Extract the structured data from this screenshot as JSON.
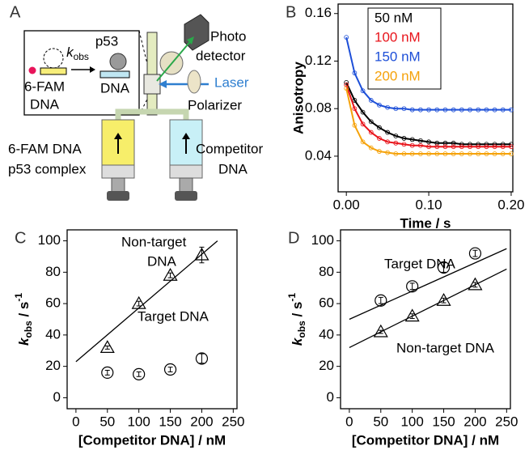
{
  "panel_a": {
    "label": "A",
    "inset": {
      "kobs": {
        "symbol": "k",
        "subscript": "obs"
      },
      "p53": "p53",
      "dye": "6-FAM",
      "dna_left": "DNA",
      "dna_right": "DNA"
    },
    "photodetector": [
      "Photo",
      "detector"
    ],
    "laser": "Laser",
    "polarizer": "Polarizer",
    "left_syringe": [
      "6-FAM DNA",
      "p53 complex"
    ],
    "right_syringe": [
      "Competitor",
      "DNA"
    ]
  },
  "chart_data": [
    {
      "type": "line",
      "panel_label": "B",
      "x_label": "Time / s",
      "y_label": "Anisotropy",
      "xlim": [
        -0.01,
        0.202
      ],
      "ylim": [
        0.01,
        0.168
      ],
      "xticks": [
        {
          "value": 0,
          "label": "0.00"
        },
        {
          "value": 0.1,
          "label": "0.10"
        },
        {
          "value": 0.2,
          "label": "0.20"
        }
      ],
      "yticks": [
        0.04,
        0.08,
        0.12,
        0.16
      ],
      "legend": "top-center",
      "x": [
        0,
        0.01,
        0.02,
        0.03,
        0.04,
        0.05,
        0.06,
        0.07,
        0.08,
        0.09,
        0.1,
        0.11,
        0.12,
        0.13,
        0.14,
        0.15,
        0.16,
        0.17,
        0.18,
        0.19,
        0.2
      ],
      "series": [
        {
          "name": "50 nM",
          "color": "#000000",
          "values": [
            0.102,
            0.087,
            0.077,
            0.069,
            0.064,
            0.06,
            0.057,
            0.055,
            0.054,
            0.053,
            0.052,
            0.051,
            0.051,
            0.051,
            0.05,
            0.05,
            0.05,
            0.05,
            0.05,
            0.05,
            0.05
          ]
        },
        {
          "name": "100 nM",
          "color": "#e8141b",
          "values": [
            0.1,
            0.08,
            0.067,
            0.06,
            0.055,
            0.052,
            0.051,
            0.05,
            0.049,
            0.049,
            0.048,
            0.048,
            0.048,
            0.048,
            0.048,
            0.048,
            0.048,
            0.048,
            0.048,
            0.048,
            0.048
          ]
        },
        {
          "name": "150 nM",
          "color": "#1d4fd8",
          "values": [
            0.14,
            0.11,
            0.095,
            0.087,
            0.083,
            0.081,
            0.08,
            0.08,
            0.079,
            0.079,
            0.079,
            0.079,
            0.079,
            0.079,
            0.079,
            0.079,
            0.079,
            0.079,
            0.079,
            0.079,
            0.079
          ]
        },
        {
          "name": "200 nM",
          "color": "#f5a20a",
          "values": [
            0.097,
            0.066,
            0.052,
            0.047,
            0.044,
            0.043,
            0.042,
            0.042,
            0.042,
            0.042,
            0.042,
            0.042,
            0.042,
            0.042,
            0.042,
            0.042,
            0.042,
            0.042,
            0.042,
            0.042,
            0.042
          ]
        }
      ]
    },
    {
      "type": "scatter",
      "panel_label": "C",
      "x_label": "[Competitor DNA] / nM",
      "y_label": {
        "symbol": "k",
        "subscript": "obs",
        "unit": " / s",
        "superscript": "-1"
      },
      "xlim": [
        -14,
        256
      ],
      "ylim": [
        -7,
        107
      ],
      "xticks": [
        0,
        50,
        100,
        150,
        200,
        250
      ],
      "yticks": [
        0,
        20,
        40,
        60,
        80,
        100
      ],
      "x": [
        50,
        100,
        150,
        200
      ],
      "series": [
        {
          "label": [
            "Non-target",
            "DNA"
          ],
          "marker": "triangle",
          "values": [
            32,
            60,
            78,
            91
          ],
          "errors": [
            1,
            1.5,
            1.5,
            5
          ],
          "fit": {
            "x": [
              0,
              225
            ],
            "values": [
              23,
              100
            ]
          }
        },
        {
          "label": [
            "Target DNA"
          ],
          "marker": "circle",
          "values": [
            16,
            15,
            18,
            25
          ],
          "errors": [
            1.5,
            1.5,
            1.5,
            3
          ]
        }
      ]
    },
    {
      "type": "scatter",
      "panel_label": "D",
      "x_label": "[Competitor DNA] / nM",
      "y_label": {
        "symbol": "k",
        "subscript": "obs",
        "unit": " / s",
        "superscript": "-1"
      },
      "xlim": [
        -14,
        256
      ],
      "ylim": [
        -7,
        107
      ],
      "xticks": [
        0,
        50,
        100,
        150,
        200,
        250
      ],
      "yticks": [
        0,
        20,
        40,
        60,
        80,
        100
      ],
      "x": [
        50,
        100,
        150,
        200
      ],
      "series": [
        {
          "label": [
            "Target DNA"
          ],
          "marker": "circle",
          "values": [
            62,
            71,
            83,
            92
          ],
          "errors": [
            2,
            2,
            3,
            2
          ],
          "fit": {
            "x": [
              0,
              250
            ],
            "values": [
              50,
              95
            ]
          }
        },
        {
          "label": [
            "Non-target DNA"
          ],
          "marker": "triangle",
          "values": [
            42,
            52,
            62,
            72
          ],
          "errors": [
            1,
            1.5,
            1.5,
            1.5
          ],
          "fit": {
            "x": [
              0,
              250
            ],
            "values": [
              32,
              82
            ]
          }
        }
      ]
    }
  ]
}
